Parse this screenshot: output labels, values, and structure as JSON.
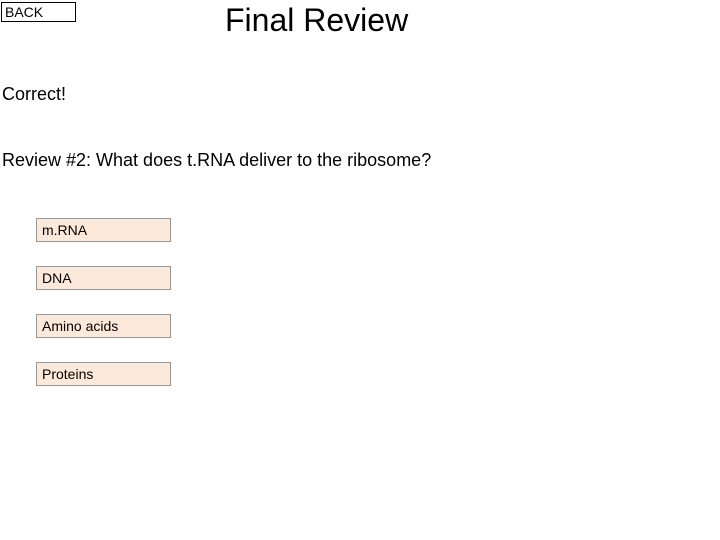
{
  "back_button": {
    "label": "BACK"
  },
  "title": "Final Review",
  "feedback": "Correct!",
  "question": "Review #2: What does t.RNA deliver to the ribosome?",
  "answers": [
    {
      "label": "m.RNA"
    },
    {
      "label": "DNA"
    },
    {
      "label": "Amino acids"
    },
    {
      "label": "Proteins"
    }
  ],
  "colors": {
    "answer_bg": "#fde9d9",
    "answer_border": "#999999",
    "back_border": "#000000",
    "background": "#ffffff"
  }
}
